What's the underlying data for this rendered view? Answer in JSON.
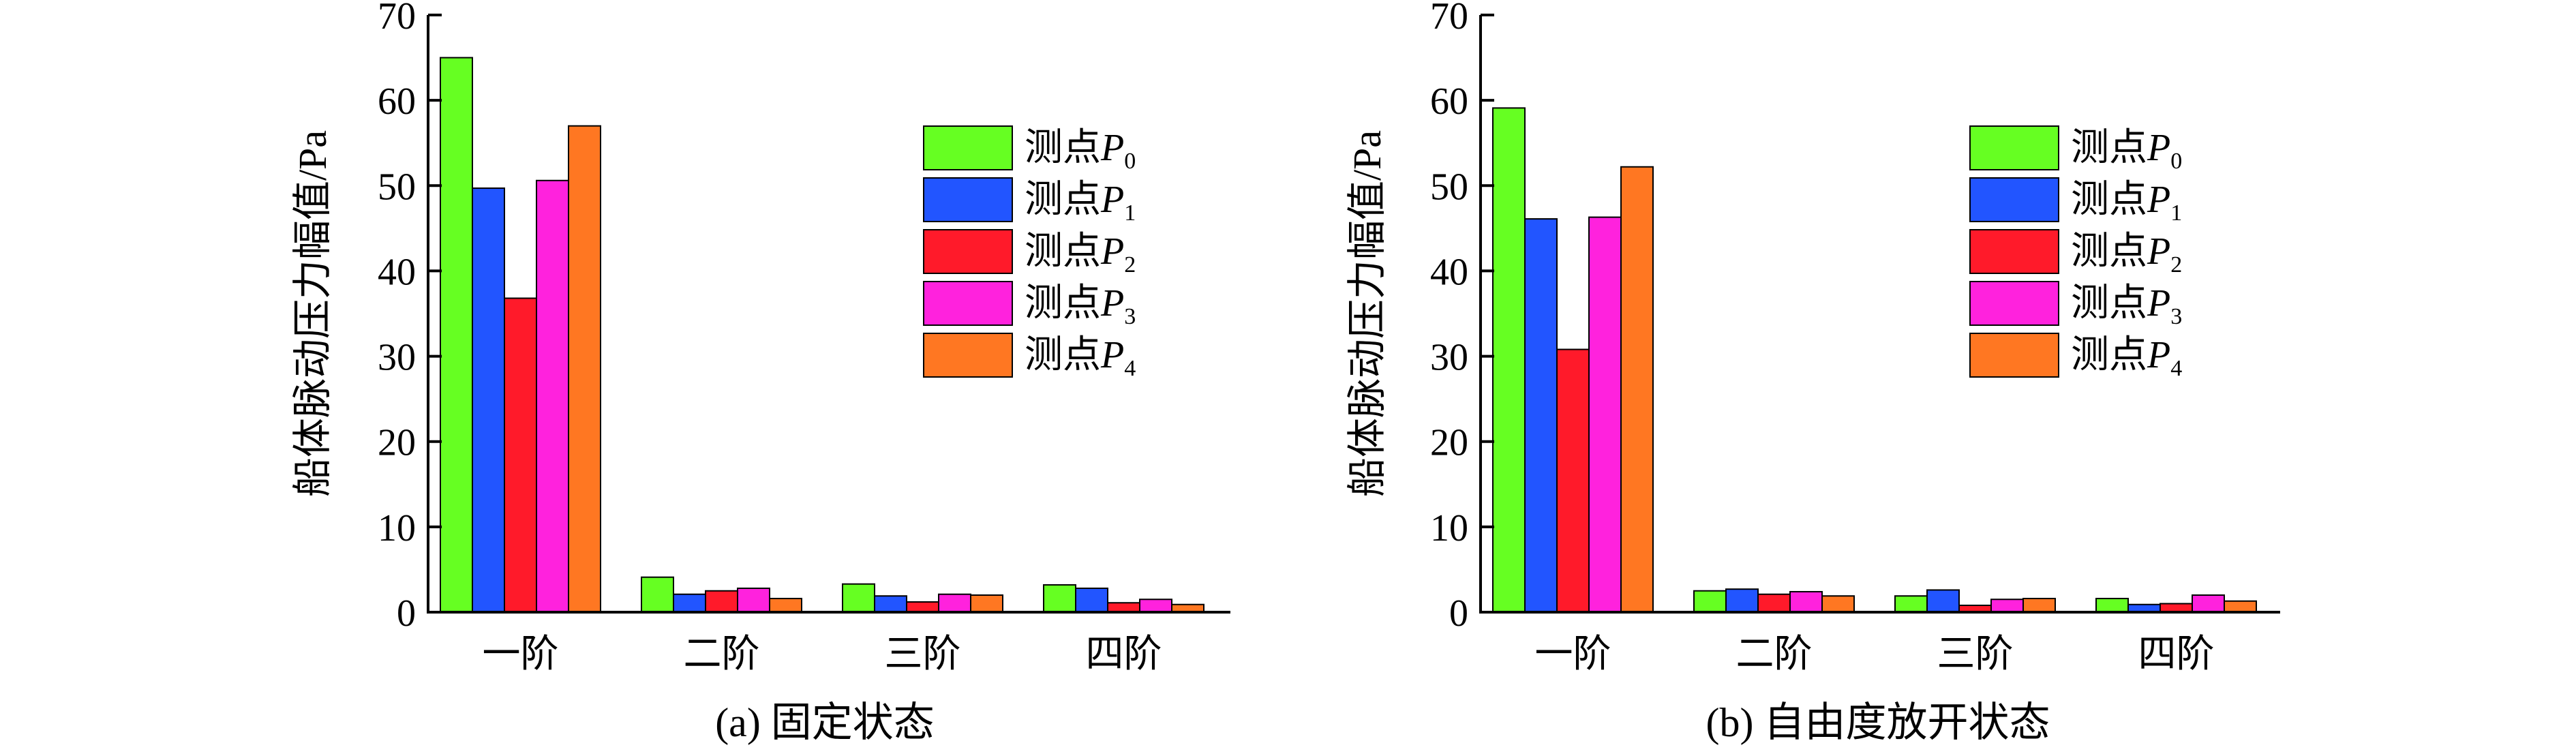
{
  "charts": [
    {
      "caption": "(a) 固定状态",
      "ylabel": "船体脉动压力幅值/Pa",
      "yticks": [
        "0",
        "10",
        "20",
        "30",
        "40",
        "50",
        "60",
        "70"
      ]
    },
    {
      "caption": "(b) 自由度放开状态",
      "ylabel": "船体脉动压力幅值/Pa",
      "yticks": [
        "0",
        "10",
        "20",
        "30",
        "40",
        "50",
        "60",
        "70"
      ]
    }
  ],
  "legend": [
    {
      "prefix": "测点",
      "var": "P",
      "sub": "0"
    },
    {
      "prefix": "测点",
      "var": "P",
      "sub": "1"
    },
    {
      "prefix": "测点",
      "var": "P",
      "sub": "2"
    },
    {
      "prefix": "测点",
      "var": "P",
      "sub": "3"
    },
    {
      "prefix": "测点",
      "var": "P",
      "sub": "4"
    }
  ],
  "colors": [
    "#66ff22",
    "#2255ff",
    "#ff1a2a",
    "#ff22dd",
    "#ff7722"
  ],
  "chart_data": [
    {
      "type": "bar",
      "title": "(a) 固定状态",
      "xlabel": "",
      "ylabel": "船体脉动压力幅值/Pa",
      "ylim": [
        0,
        70
      ],
      "grid": false,
      "legend_position": "top-right",
      "categories": [
        "一阶",
        "二阶",
        "三阶",
        "四阶"
      ],
      "series": [
        {
          "name": "测点P0",
          "values": [
            65.0,
            4.1,
            3.3,
            3.2
          ]
        },
        {
          "name": "测点P1",
          "values": [
            49.7,
            2.1,
            1.9,
            2.8
          ]
        },
        {
          "name": "测点P2",
          "values": [
            36.8,
            2.5,
            1.2,
            1.1
          ]
        },
        {
          "name": "测点P3",
          "values": [
            50.6,
            2.8,
            2.1,
            1.5
          ]
        },
        {
          "name": "测点P4",
          "values": [
            57.0,
            1.6,
            2.0,
            0.9
          ]
        }
      ]
    },
    {
      "type": "bar",
      "title": "(b) 自由度放开状态",
      "xlabel": "",
      "ylabel": "船体脉动压力幅值/Pa",
      "ylim": [
        0,
        70
      ],
      "grid": false,
      "legend_position": "top-right",
      "categories": [
        "一阶",
        "二阶",
        "三阶",
        "四阶"
      ],
      "series": [
        {
          "name": "测点P0",
          "values": [
            59.1,
            2.5,
            1.9,
            1.6
          ]
        },
        {
          "name": "测点P1",
          "values": [
            46.1,
            2.7,
            2.6,
            0.9
          ]
        },
        {
          "name": "测点P2",
          "values": [
            30.8,
            2.1,
            0.8,
            1.0
          ]
        },
        {
          "name": "测点P3",
          "values": [
            46.3,
            2.4,
            1.5,
            2.0
          ]
        },
        {
          "name": "测点P4",
          "values": [
            52.2,
            1.9,
            1.6,
            1.3
          ]
        }
      ]
    }
  ]
}
